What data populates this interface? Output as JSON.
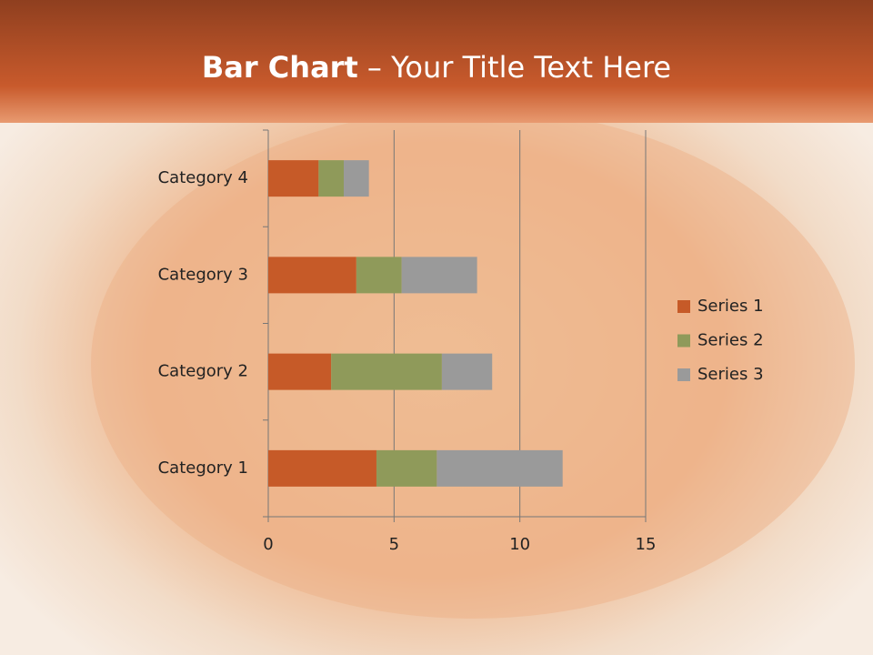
{
  "chart_data": {
    "type": "stacked-bar-horizontal",
    "title": {
      "bold": "Bar Chart",
      "rest": " – Your Title Text Here"
    },
    "categories": [
      "Category 1",
      "Category 2",
      "Category 3",
      "Category 4"
    ],
    "series": [
      {
        "name": "Series 1",
        "color": "#c65a28",
        "values": [
          4.3,
          2.5,
          3.5,
          2
        ]
      },
      {
        "name": "Series 2",
        "color": "#8f9a5a",
        "values": [
          2.4,
          4.4,
          1.8,
          1
        ]
      },
      {
        "name": "Series 3",
        "color": "#9a9a9a",
        "values": [
          5,
          2,
          3,
          1
        ]
      }
    ],
    "xlim": [
      0,
      15
    ],
    "xticks": [
      0,
      5,
      10,
      15
    ],
    "grid": true,
    "legend": "right"
  }
}
